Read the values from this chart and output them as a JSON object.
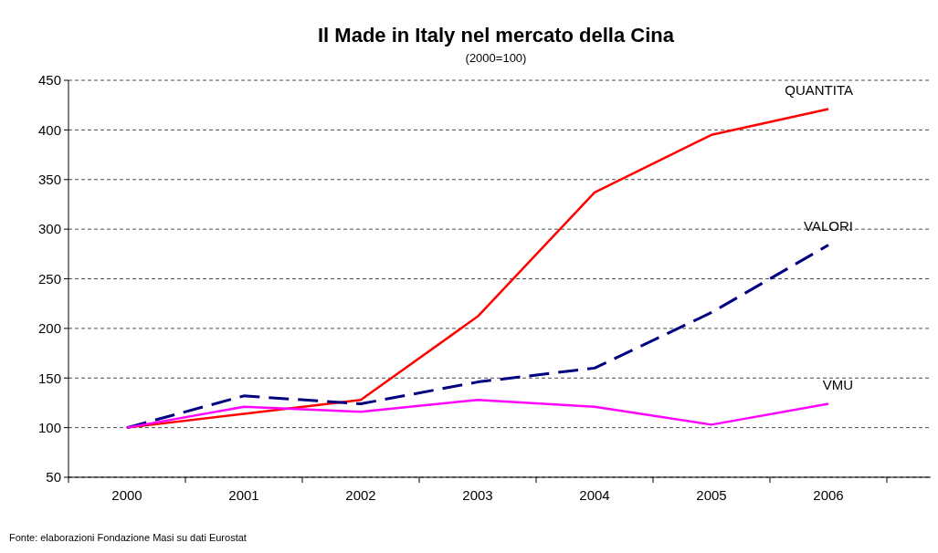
{
  "chart_data": {
    "type": "line",
    "title": "Il Made in Italy nel mercato della Cina",
    "subtitle": "(2000=100)",
    "categories": [
      "2000",
      "2001",
      "2002",
      "2003",
      "2004",
      "2005",
      "2006"
    ],
    "series": [
      {
        "name": "QUANTITA",
        "color": "#ff0000",
        "line_style": "solid",
        "values": [
          100,
          114,
          128,
          212,
          337,
          395,
          421
        ]
      },
      {
        "name": "VALORI",
        "color": "#000080",
        "line_style": "dashed",
        "values": [
          100,
          132,
          124,
          146,
          160,
          216,
          284
        ]
      },
      {
        "name": "VMU",
        "color": "#ff00ff",
        "line_style": "solid",
        "values": [
          100,
          121,
          116,
          128,
          121,
          103,
          124
        ]
      }
    ],
    "ylim": [
      50,
      450
    ],
    "yticks": [
      50,
      100,
      150,
      200,
      250,
      300,
      350,
      400,
      450
    ],
    "grid": "y",
    "marker": "none",
    "annotations": [
      "Fonte: elaborazioni Fondazione Masi su dati Eurostat"
    ]
  }
}
